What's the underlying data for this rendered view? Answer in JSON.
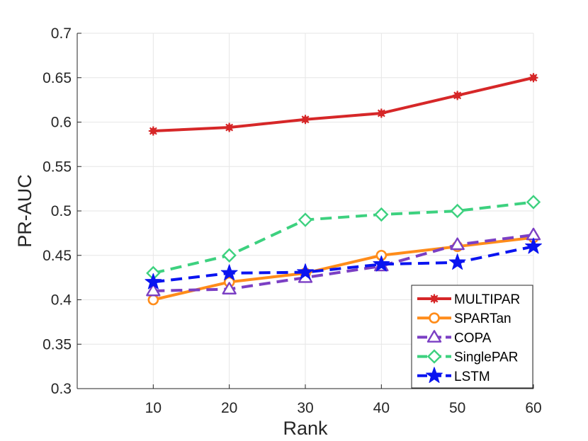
{
  "chart_data": {
    "type": "line",
    "title": "",
    "xlabel": "Rank",
    "ylabel": "PR-AUC",
    "x": [
      10,
      20,
      30,
      40,
      50,
      60
    ],
    "xlim": [
      0,
      60
    ],
    "ylim": [
      0.3,
      0.7
    ],
    "xticks": [
      10,
      20,
      30,
      40,
      50,
      60
    ],
    "xtick_labels": [
      "10",
      "20",
      "30",
      "40",
      "50",
      "60"
    ],
    "yticks": [
      0.3,
      0.35,
      0.4,
      0.45,
      0.5,
      0.55,
      0.6,
      0.65,
      0.7
    ],
    "ytick_labels": [
      "0.3",
      "0.35",
      "0.4",
      "0.45",
      "0.5",
      "0.55",
      "0.6",
      "0.65",
      "0.7"
    ],
    "grid": true,
    "legend_position": "bottom-right",
    "series": [
      {
        "name": "MULTIPAR",
        "values": [
          0.59,
          0.594,
          0.603,
          0.61,
          0.63,
          0.65
        ],
        "color": "#D62728",
        "line_style": "solid",
        "marker": "asterisk"
      },
      {
        "name": "SPARTan",
        "values": [
          0.4,
          0.42,
          0.43,
          0.45,
          0.46,
          0.47
        ],
        "color": "#FF8C1A",
        "line_style": "solid",
        "marker": "circle"
      },
      {
        "name": "COPA",
        "values": [
          0.41,
          0.412,
          0.425,
          0.438,
          0.462,
          0.473
        ],
        "color": "#7B3FC4",
        "line_style": "dashed",
        "marker": "triangle"
      },
      {
        "name": "SinglePAR",
        "values": [
          0.43,
          0.45,
          0.49,
          0.496,
          0.5,
          0.51
        ],
        "color": "#3DD17F",
        "line_style": "dashed",
        "marker": "diamond"
      },
      {
        "name": "LSTM",
        "values": [
          0.42,
          0.43,
          0.431,
          0.44,
          0.442,
          0.46
        ],
        "color": "#0A14F0",
        "line_style": "dashed",
        "marker": "star"
      }
    ]
  }
}
